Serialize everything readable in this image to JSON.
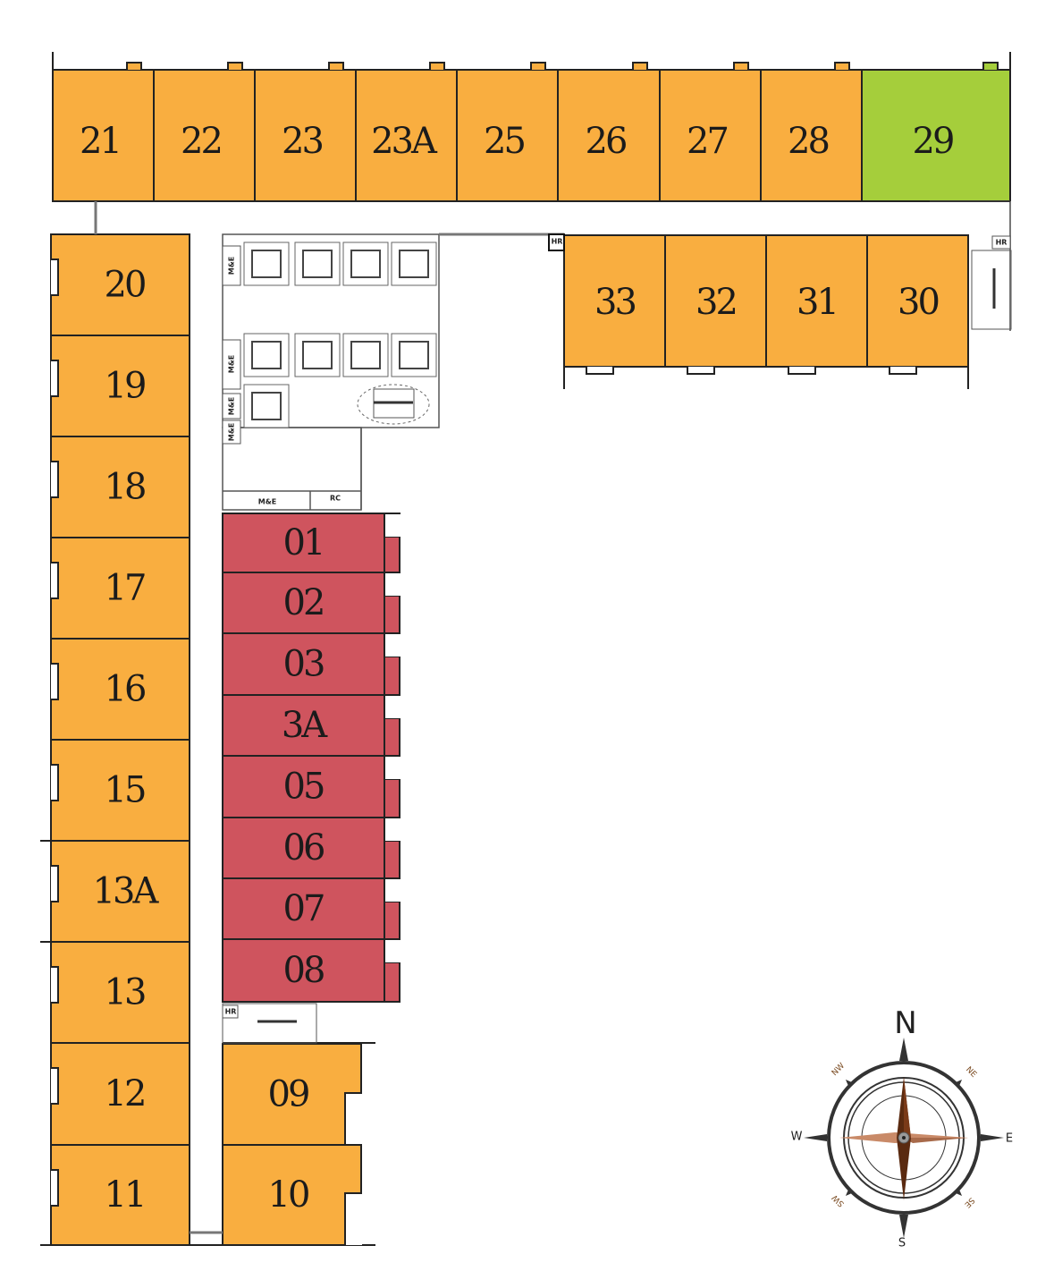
{
  "status_colors": {
    "available": "#F9AE40",
    "sold": "#CF545E",
    "selected": "#A5CE3B"
  },
  "units": {
    "top_row": [
      {
        "label": "21",
        "status": "available"
      },
      {
        "label": "22",
        "status": "available"
      },
      {
        "label": "23",
        "status": "available"
      },
      {
        "label": "23A",
        "status": "available"
      },
      {
        "label": "25",
        "status": "available"
      },
      {
        "label": "26",
        "status": "available"
      },
      {
        "label": "27",
        "status": "available"
      },
      {
        "label": "28",
        "status": "available"
      },
      {
        "label": "29",
        "status": "selected"
      }
    ],
    "east_row": [
      {
        "label": "33",
        "status": "available"
      },
      {
        "label": "32",
        "status": "available"
      },
      {
        "label": "31",
        "status": "available"
      },
      {
        "label": "30",
        "status": "available"
      }
    ],
    "west_column": [
      {
        "label": "20",
        "status": "available"
      },
      {
        "label": "19",
        "status": "available"
      },
      {
        "label": "18",
        "status": "available"
      },
      {
        "label": "17",
        "status": "available"
      },
      {
        "label": "16",
        "status": "available"
      },
      {
        "label": "15",
        "status": "available"
      },
      {
        "label": "13A",
        "status": "available"
      },
      {
        "label": "13",
        "status": "available"
      },
      {
        "label": "12",
        "status": "available"
      },
      {
        "label": "11",
        "status": "available"
      }
    ],
    "center_column": [
      {
        "label": "01",
        "status": "sold"
      },
      {
        "label": "02",
        "status": "sold"
      },
      {
        "label": "03",
        "status": "sold"
      },
      {
        "label": "3A",
        "status": "sold"
      },
      {
        "label": "05",
        "status": "sold"
      },
      {
        "label": "06",
        "status": "sold"
      },
      {
        "label": "07",
        "status": "sold"
      },
      {
        "label": "08",
        "status": "sold"
      }
    ],
    "south_block": [
      {
        "label": "09",
        "status": "available"
      },
      {
        "label": "10",
        "status": "available"
      }
    ]
  },
  "service_rooms": {
    "me_1": "M&E",
    "me_2": "M&E",
    "me_3": "M&E",
    "me_4": "M&E",
    "me_5": "M&E",
    "rc": "RC",
    "hr_1": "HR",
    "hr_2": "HR",
    "hr_3": "HR"
  },
  "compass": {
    "n": "N",
    "ne": "NE",
    "e": "E",
    "se": "SE",
    "s": "S",
    "sw": "SW",
    "w": "W",
    "nw": "NW",
    "colors": {
      "needle_dark": "#5A2A10",
      "needle_light": "#C98A68",
      "ring": "#333333"
    }
  }
}
